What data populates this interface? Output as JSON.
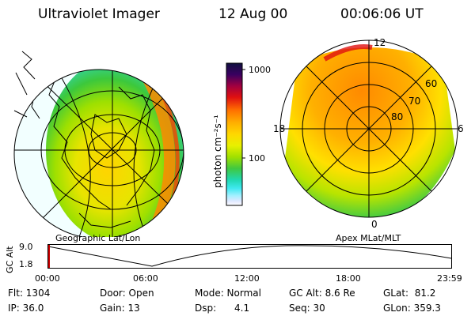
{
  "header": {
    "instrument": "Ultraviolet Imager",
    "date": "12 Aug 00",
    "time": "00:06:06 UT"
  },
  "geo_panel": {
    "label": "Geographic Lat/Lon"
  },
  "apex_panel": {
    "label": "Apex MLat/MLT",
    "mlt_labels": [
      "12",
      "18",
      "6",
      "0"
    ],
    "lat_labels": [
      "60",
      "70",
      "80"
    ]
  },
  "colorbar": {
    "label": "photon cm⁻²s⁻¹",
    "ticks": [
      "1000",
      "100"
    ],
    "colors": [
      "#101040",
      "#3a0060",
      "#a00040",
      "#e01010",
      "#ff7000",
      "#ffb000",
      "#ffd800",
      "#e8f000",
      "#a0e000",
      "#40c840",
      "#20d8b0",
      "#40e8f0",
      "#a0f0ff",
      "#e0e8ff",
      "#ffffff"
    ]
  },
  "altitude_plot": {
    "ylabel": "GC Alt",
    "y_ticks": [
      "9.0",
      "1.8"
    ],
    "x_ticks": [
      "00:00",
      "06:00",
      "12:00",
      "18:00",
      "23:59"
    ],
    "current_marker_color": "#cc0000"
  },
  "info": {
    "flt": "Flt: 1304",
    "ip": "IP: 36.0",
    "door": "Door: Open",
    "gain": "Gain: 13",
    "mode": "Mode: Normal",
    "dsp": "Dsp:      4.1",
    "gc_alt": "GC Alt: 8.6 Re",
    "seq": "Seq: 30",
    "glat": "GLat:  81.2",
    "glon": "GLon: 359.3"
  }
}
